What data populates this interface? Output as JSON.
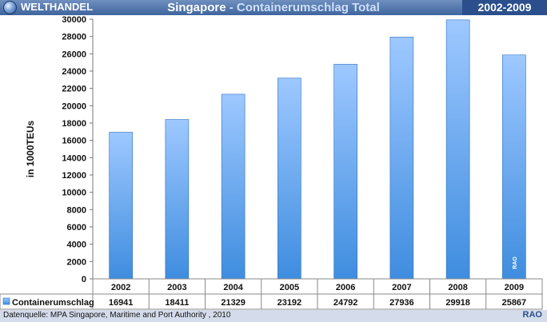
{
  "header": {
    "brand": "WELTHANDEL",
    "title_main": "Singapore",
    "title_sep": " - ",
    "title_sub": "Containerumschlag Total",
    "year_range": "2002-2009"
  },
  "footer": {
    "source": "Datenquelle: MPA Singapore, Maritime and Port Authority ,  2010",
    "mark": "RAO"
  },
  "chart_data": {
    "type": "bar",
    "title": "Singapore - Containerumschlag Total",
    "categories": [
      "2002",
      "2003",
      "2004",
      "2005",
      "2006",
      "2007",
      "2008",
      "2009"
    ],
    "series": [
      {
        "name": "Containerumschlag",
        "values": [
          16941,
          18411,
          21329,
          23192,
          24792,
          27936,
          29918,
          25867
        ]
      }
    ],
    "ylabel": "in 1000TEUs",
    "xlabel": "",
    "ylim": [
      0,
      30000
    ],
    "ytick_step": 2000,
    "grid": false,
    "legend": "data-table",
    "watermark": "RAO",
    "colors": {
      "bar_top": "#9ec8ff",
      "bar_bottom": "#3f8ddf",
      "bar_edge": "#2a6fc0"
    }
  }
}
